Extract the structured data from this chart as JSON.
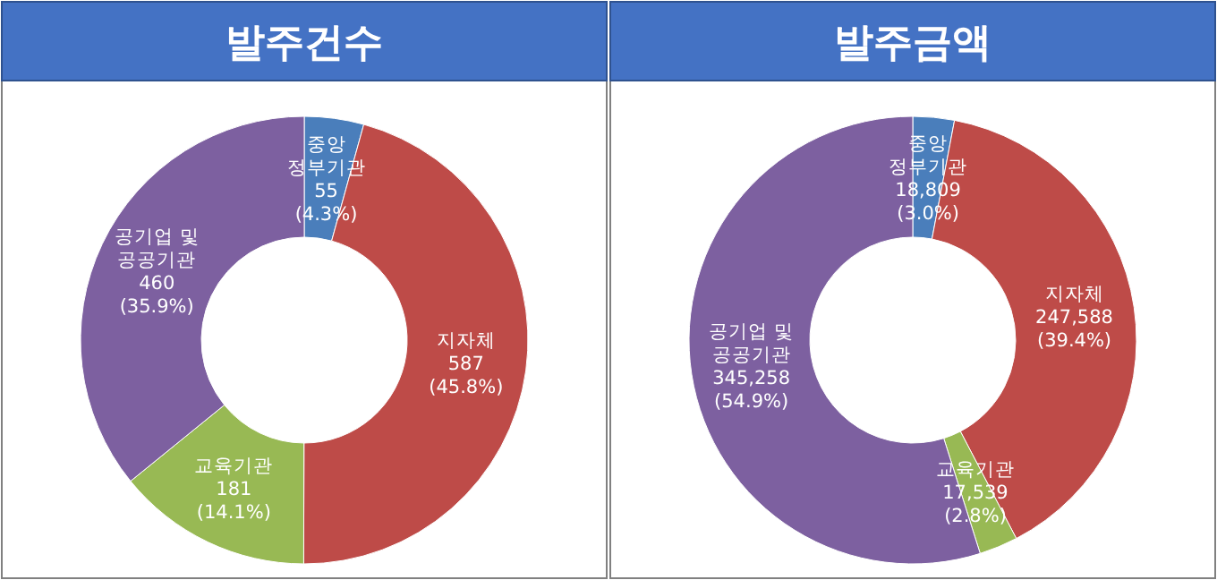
{
  "chart_data": [
    {
      "type": "donut",
      "title": "발주건수",
      "categories": [
        "중앙\n정부기관",
        "지자체",
        "교육기관",
        "공기업 및\n공공기관"
      ],
      "values": [
        55,
        587,
        181,
        460
      ],
      "colors": [
        "#4a7ebb",
        "#be4b48",
        "#98b954",
        "#7d60a0"
      ],
      "value_labels": [
        "55\n(4.3%)",
        "587\n(45.8%)",
        "181\n(14.1%)",
        "460\n(35.9%)"
      ]
    },
    {
      "type": "donut",
      "title": "발주금액",
      "categories": [
        "중앙\n정부기관",
        "지자체",
        "교육기관",
        "공기업 및\n공공기관"
      ],
      "values": [
        18809,
        247588,
        17539,
        345258
      ],
      "colors": [
        "#4a7ebb",
        "#be4b48",
        "#98b954",
        "#7d60a0"
      ],
      "value_labels": [
        "18,809\n(3.0%)",
        "247,588\n(39.4%)",
        "17,539\n(2.8%)",
        "345,258\n(54.9%)"
      ]
    }
  ]
}
